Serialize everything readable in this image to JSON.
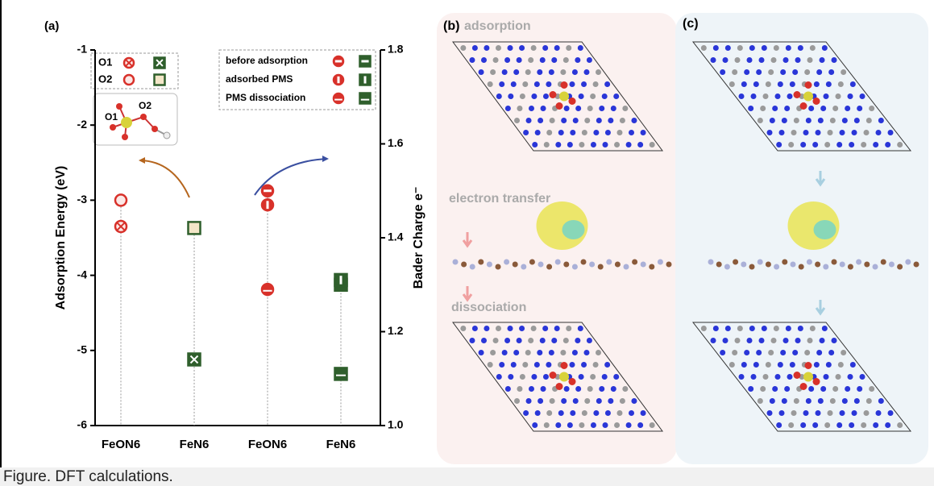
{
  "caption": "Figure. DFT calculations.",
  "chart_data": {
    "type": "scatter",
    "panel_label": "(a)",
    "categories": [
      "FeON6",
      "FeN6",
      "FeON6",
      "FeN6"
    ],
    "point_colors": [
      "#d8312a",
      "#2f5f2c",
      "#d8312a",
      "#2f5f2c"
    ],
    "ylabel": "Adsorption Energy (eV)",
    "y2label": "Bader Charge  e⁻",
    "ylim": [
      -6,
      -1
    ],
    "yticks": [
      -6,
      -5,
      -4,
      -3,
      -2,
      -1
    ],
    "y2lim": [
      1.0,
      1.8
    ],
    "y2ticks": [
      {
        "value": 1.0,
        "label": "1.0"
      },
      {
        "value": 1.2,
        "label": "1.2"
      },
      {
        "value": 1.4,
        "label": "1.4"
      },
      {
        "value": 1.6,
        "label": "1.6"
      },
      {
        "value": 1.8,
        "label": "1.8"
      }
    ],
    "series": [
      {
        "name": "O1",
        "marker": "x",
        "values": [
          -3.35,
          -5.12,
          null,
          null
        ]
      },
      {
        "name": "O2",
        "marker": "ring",
        "values": [
          -3.0,
          -3.37,
          null,
          null
        ]
      },
      {
        "name": "before adsorption",
        "marker": "band-h",
        "axis": "y2",
        "values": [
          null,
          null,
          1.5,
          1.3
        ]
      },
      {
        "name": "adsorbed PMS",
        "marker": "band-v",
        "axis": "y2",
        "values": [
          null,
          null,
          1.47,
          1.31
        ]
      },
      {
        "name": "PMS dissociation",
        "marker": "line-h",
        "axis": "y2",
        "values": [
          null,
          null,
          1.29,
          1.11
        ]
      }
    ],
    "inset_labels": [
      "O1",
      "O2"
    ]
  },
  "panels": [
    {
      "label": "(b)",
      "steps": [
        "adsorption",
        "electron transfer",
        "dissociation"
      ]
    },
    {
      "label": "(c)"
    }
  ]
}
